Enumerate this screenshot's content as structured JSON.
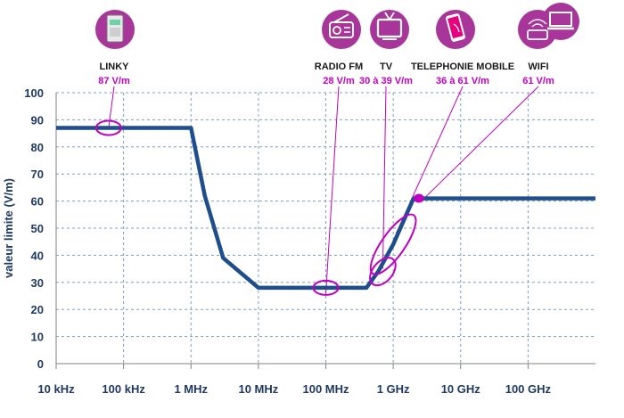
{
  "chart_data": {
    "type": "line",
    "xscale": "log",
    "xlim": [
      "10 kHz",
      "1000 GHz"
    ],
    "ylim": [
      0,
      100
    ],
    "ylabel": "valeur limite (V/m)",
    "grid": "dashed",
    "x_ticks": [
      "10 kHz",
      "100 kHz",
      "1 MHz",
      "10 MHz",
      "100 MHz",
      "1 GHz",
      "10 GHz",
      "100 GHz"
    ],
    "y_ticks": [
      "0",
      "10",
      "20",
      "30",
      "40",
      "50",
      "60",
      "70",
      "80",
      "90",
      "100"
    ],
    "series": [
      {
        "values_hz": [
          [
            10000,
            87
          ],
          [
            1000000,
            87
          ],
          [
            1600000,
            62
          ],
          [
            3000000,
            39
          ],
          [
            10000000,
            28
          ],
          [
            400000000,
            28
          ],
          [
            600000000,
            34
          ],
          [
            1000000000,
            44
          ],
          [
            2000000000,
            61
          ],
          [
            1000000000000,
            61
          ]
        ]
      }
    ],
    "callouts": [
      {
        "name": "LINKY",
        "value": "87 V/m",
        "freq_hz": 60000,
        "y": 87,
        "icon": "linky-meter-icon"
      },
      {
        "name": "RADIO FM",
        "value": "28  V/m",
        "freq_hz": 100000000,
        "y": 28,
        "icon": "radio-icon"
      },
      {
        "name": "TV",
        "value": "30 à 39 V/m",
        "freq_hz": 700000000,
        "y": 35,
        "icon": "tv-icon"
      },
      {
        "name": "TELEPHONIE MOBILE",
        "value": "36 à 61 V/m",
        "freq_hz": 1100000000,
        "y": 48,
        "icon": "smartphone-icon"
      },
      {
        "name": "WIFI",
        "value": "61 V/m",
        "freq_hz": 2400000000,
        "y": 61,
        "icon": "wifi-router-icon"
      }
    ],
    "colors": {
      "line": "#1f4e8c",
      "highlight": "#c000c0",
      "icon_bg": "#a8359a",
      "grid": "#7f9fbf",
      "text": "#1f3864"
    }
  }
}
